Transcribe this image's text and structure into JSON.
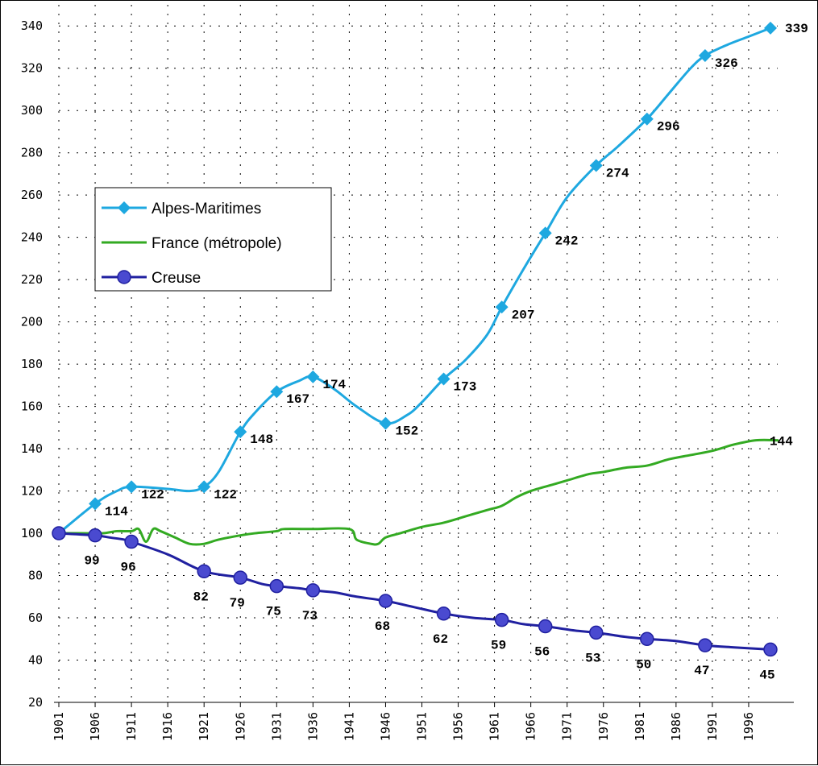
{
  "chart_data": {
    "type": "line",
    "x_start": 1901,
    "x_end": 2000,
    "x_ticks": [
      1901,
      1906,
      1911,
      1916,
      1921,
      1926,
      1931,
      1936,
      1941,
      1946,
      1951,
      1956,
      1961,
      1966,
      1971,
      1976,
      1981,
      1986,
      1991,
      1996
    ],
    "ylim": [
      20,
      350
    ],
    "y_ticks": [
      20,
      40,
      60,
      80,
      100,
      120,
      140,
      160,
      180,
      200,
      220,
      240,
      260,
      280,
      300,
      320,
      340
    ],
    "grid": true,
    "legend_position": "left-middle",
    "series": [
      {
        "name": "Alpes-Maritimes",
        "color": "#1ea8e0",
        "marker": "diamond",
        "points": [
          [
            1901,
            100
          ],
          [
            1906,
            114
          ],
          [
            1911,
            122
          ],
          [
            1921,
            122
          ],
          [
            1926,
            148
          ],
          [
            1931,
            167
          ],
          [
            1936,
            174
          ],
          [
            1946,
            152
          ],
          [
            1954,
            173
          ],
          [
            1962,
            207
          ],
          [
            1968,
            242
          ],
          [
            1975,
            274
          ],
          [
            1982,
            296
          ],
          [
            1990,
            326
          ],
          [
            1999,
            339
          ]
        ],
        "labels": [
          null,
          "114",
          "122",
          "122",
          "148",
          "167",
          "174",
          "152",
          "173",
          "207",
          "242",
          "274",
          "296",
          "326",
          "339"
        ],
        "curve": [
          [
            1901,
            100
          ],
          [
            1906,
            114
          ],
          [
            1909,
            120
          ],
          [
            1911,
            122
          ],
          [
            1916,
            121
          ],
          [
            1919,
            120
          ],
          [
            1921,
            122
          ],
          [
            1923,
            129
          ],
          [
            1926,
            148
          ],
          [
            1928,
            157
          ],
          [
            1931,
            167
          ],
          [
            1934,
            172
          ],
          [
            1936,
            174
          ],
          [
            1939,
            168
          ],
          [
            1942,
            160
          ],
          [
            1946,
            152
          ],
          [
            1949,
            156
          ],
          [
            1951,
            162
          ],
          [
            1954,
            173
          ],
          [
            1957,
            182
          ],
          [
            1960,
            194
          ],
          [
            1962,
            207
          ],
          [
            1965,
            225
          ],
          [
            1968,
            242
          ],
          [
            1971,
            259
          ],
          [
            1975,
            274
          ],
          [
            1978,
            283
          ],
          [
            1982,
            296
          ],
          [
            1985,
            308
          ],
          [
            1988,
            320
          ],
          [
            1990,
            326
          ],
          [
            1993,
            331
          ],
          [
            1996,
            335
          ],
          [
            1999,
            339
          ]
        ]
      },
      {
        "name": "France (métropole)",
        "color": "#33aa22",
        "marker": "none",
        "points": [
          [
            2000,
            144
          ]
        ],
        "labels": [
          "144"
        ],
        "curve": [
          [
            1901,
            100
          ],
          [
            1904,
            100
          ],
          [
            1907,
            100
          ],
          [
            1909,
            101
          ],
          [
            1911,
            101
          ],
          [
            1912,
            102
          ],
          [
            1913,
            96
          ],
          [
            1914,
            102
          ],
          [
            1915,
            101
          ],
          [
            1917,
            98
          ],
          [
            1919,
            95
          ],
          [
            1921,
            95
          ],
          [
            1923,
            97
          ],
          [
            1926,
            99
          ],
          [
            1928,
            100
          ],
          [
            1931,
            101
          ],
          [
            1932,
            102
          ],
          [
            1936,
            102
          ],
          [
            1941,
            102
          ],
          [
            1942,
            97
          ],
          [
            1944,
            95
          ],
          [
            1945,
            95
          ],
          [
            1946,
            98
          ],
          [
            1948,
            100
          ],
          [
            1951,
            103
          ],
          [
            1954,
            105
          ],
          [
            1957,
            108
          ],
          [
            1960,
            111
          ],
          [
            1962,
            113
          ],
          [
            1964,
            117
          ],
          [
            1966,
            120
          ],
          [
            1969,
            123
          ],
          [
            1971,
            125
          ],
          [
            1974,
            128
          ],
          [
            1976,
            129
          ],
          [
            1979,
            131
          ],
          [
            1982,
            132
          ],
          [
            1985,
            135
          ],
          [
            1988,
            137
          ],
          [
            1991,
            139
          ],
          [
            1994,
            142
          ],
          [
            1997,
            144
          ],
          [
            2000,
            144
          ]
        ]
      },
      {
        "name": "Creuse",
        "color": "#2020a0",
        "marker": "circle",
        "points": [
          [
            1901,
            100
          ],
          [
            1906,
            99
          ],
          [
            1911,
            96
          ],
          [
            1921,
            82
          ],
          [
            1926,
            79
          ],
          [
            1931,
            75
          ],
          [
            1936,
            73
          ],
          [
            1946,
            68
          ],
          [
            1954,
            62
          ],
          [
            1962,
            59
          ],
          [
            1968,
            56
          ],
          [
            1975,
            53
          ],
          [
            1982,
            50
          ],
          [
            1990,
            47
          ],
          [
            1999,
            45
          ]
        ],
        "labels": [
          null,
          "99",
          "96",
          "82",
          "79",
          "75",
          "73",
          "68",
          "62",
          "59",
          "56",
          "53",
          "50",
          "47",
          "45"
        ],
        "curve": [
          [
            1901,
            100
          ],
          [
            1906,
            99
          ],
          [
            1908,
            98
          ],
          [
            1910,
            97
          ],
          [
            1911,
            96
          ],
          [
            1916,
            90
          ],
          [
            1921,
            82
          ],
          [
            1926,
            79
          ],
          [
            1929,
            76
          ],
          [
            1931,
            75
          ],
          [
            1934,
            74
          ],
          [
            1936,
            73
          ],
          [
            1939,
            72
          ],
          [
            1942,
            70
          ],
          [
            1946,
            68
          ],
          [
            1950,
            65
          ],
          [
            1954,
            62
          ],
          [
            1958,
            60
          ],
          [
            1962,
            59
          ],
          [
            1965,
            57
          ],
          [
            1968,
            56
          ],
          [
            1972,
            54
          ],
          [
            1975,
            53
          ],
          [
            1979,
            51
          ],
          [
            1982,
            50
          ],
          [
            1986,
            49
          ],
          [
            1990,
            47
          ],
          [
            1994,
            46
          ],
          [
            1999,
            45
          ]
        ]
      }
    ]
  }
}
